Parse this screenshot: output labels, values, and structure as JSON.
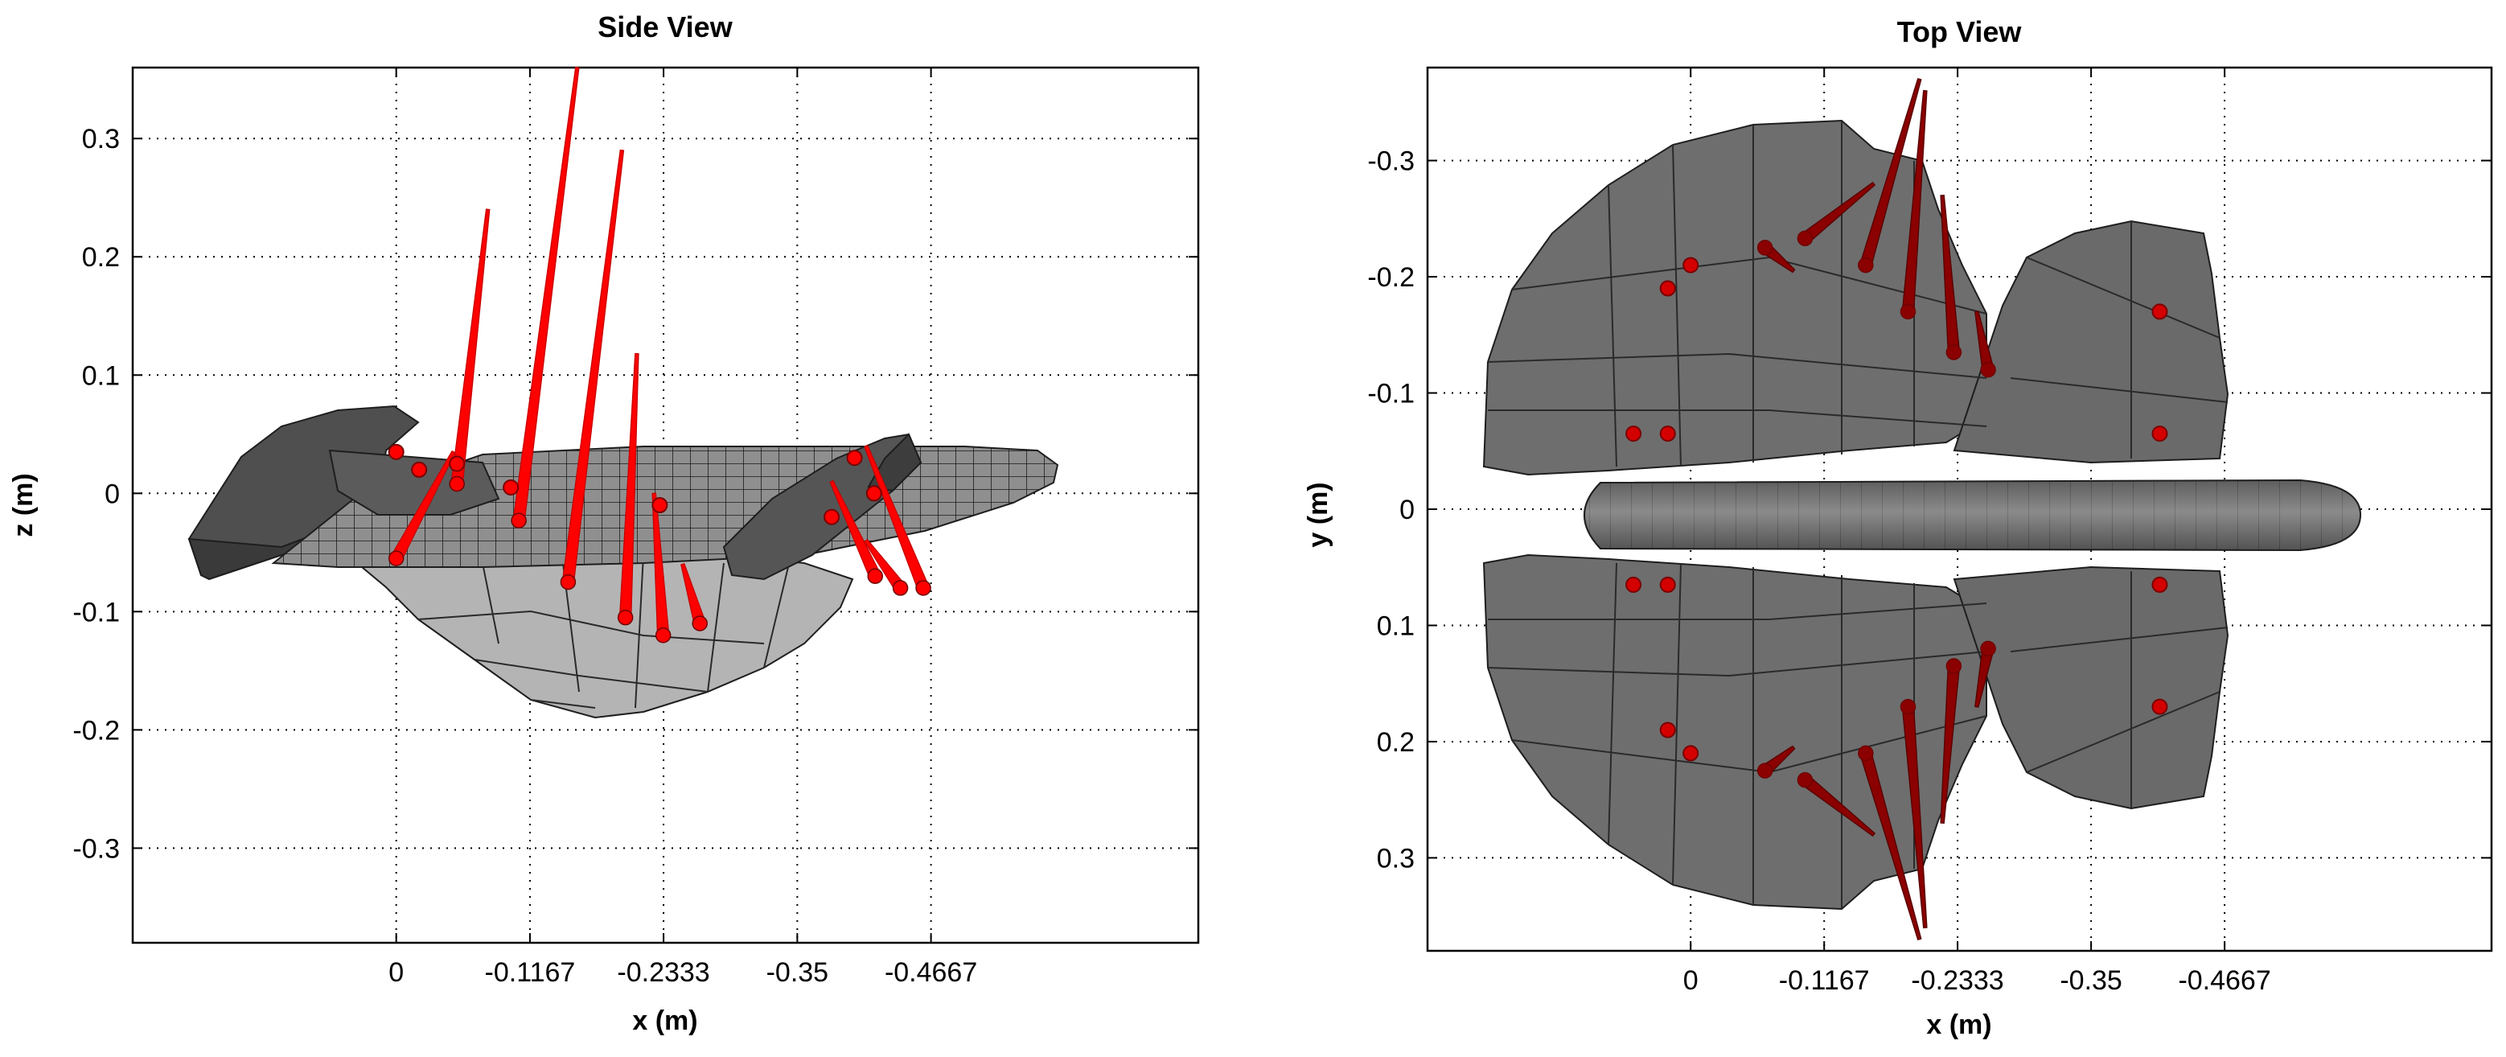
{
  "colors": {
    "background": "#ffffff",
    "body_dark": "#4a4a4a",
    "body_mid": "#6f6f6f",
    "body_light": "#b4b4b4",
    "force_side": "#ff0000",
    "force_top": "#8b0000"
  },
  "chart_data": [
    {
      "type": "other",
      "subtype": "3d-surface-with-force-vectors",
      "title": "Side View",
      "xlabel": "x (m)",
      "ylabel": "z (m)",
      "x_ticks": [
        "0",
        "-0.1167",
        "-0.2333",
        "-0.35",
        "-0.4667"
      ],
      "x_tick_values": [
        0,
        -0.1167,
        -0.2333,
        -0.35,
        -0.4667
      ],
      "y_ticks": [
        "0.3",
        "0.2",
        "0.1",
        "0",
        "-0.1",
        "-0.2",
        "-0.3"
      ],
      "y_tick_values": [
        0.3,
        0.2,
        0.1,
        0,
        -0.1,
        -0.2,
        -0.3
      ],
      "xlim": [
        0.23,
        -0.7
      ],
      "ylim": [
        -0.38,
        0.36
      ],
      "grid": true,
      "force_arrows": [
        {
          "x0": -0.053,
          "z0": 0.008,
          "x1": -0.08,
          "z1": 0.24
        },
        {
          "x0": -0.107,
          "z0": -0.023,
          "x1": -0.158,
          "z1": 0.36
        },
        {
          "x0": -0.15,
          "z0": -0.075,
          "x1": -0.197,
          "z1": 0.29
        },
        {
          "x0": -0.2,
          "z0": -0.105,
          "x1": -0.21,
          "z1": 0.118
        },
        {
          "x0": -0.233,
          "z0": -0.12,
          "x1": -0.225,
          "z1": 0.0
        },
        {
          "x0": -0.265,
          "z0": -0.11,
          "x1": -0.25,
          "z1": -0.06
        },
        {
          "x0": 0.0,
          "z0": -0.055,
          "x1": -0.05,
          "z1": 0.035
        },
        {
          "x0": -0.418,
          "z0": -0.07,
          "x1": -0.38,
          "z1": 0.01
        },
        {
          "x0": -0.46,
          "z0": -0.08,
          "x1": -0.41,
          "z1": 0.04
        },
        {
          "x0": -0.44,
          "z0": -0.08,
          "x1": -0.41,
          "z1": -0.04
        }
      ],
      "force_points": [
        {
          "x": -0.0,
          "z": 0.035
        },
        {
          "x": -0.053,
          "z": 0.025
        },
        {
          "x": -0.38,
          "z": -0.02
        },
        {
          "x": -0.4,
          "z": 0.03
        },
        {
          "x": -0.417,
          "z": 0.0
        },
        {
          "x": -0.23,
          "z": -0.01
        },
        {
          "x": -0.1,
          "z": 0.005
        },
        {
          "x": -0.02,
          "z": 0.02
        }
      ]
    },
    {
      "type": "other",
      "subtype": "3d-surface-with-force-vectors",
      "title": "Top View",
      "xlabel": "x (m)",
      "ylabel": "y (m)",
      "x_ticks": [
        "0",
        "-0.1167",
        "-0.2333",
        "-0.35",
        "-0.4667"
      ],
      "x_tick_values": [
        0,
        -0.1167,
        -0.2333,
        -0.35,
        -0.4667
      ],
      "y_ticks": [
        "-0.3",
        "-0.2",
        "-0.1",
        "0",
        "0.1",
        "0.2",
        "0.3"
      ],
      "y_tick_values": [
        -0.3,
        -0.2,
        -0.1,
        0,
        0.1,
        0.2,
        0.3
      ],
      "xlim": [
        0.23,
        -0.7
      ],
      "ylim": [
        -0.38,
        0.38
      ],
      "grid": true,
      "force_arrows": [
        {
          "x0": -0.065,
          "y0": -0.225,
          "x1": -0.09,
          "y1": -0.205
        },
        {
          "x0": -0.1,
          "y0": -0.233,
          "x1": -0.16,
          "y1": -0.28
        },
        {
          "x0": -0.153,
          "y0": -0.21,
          "x1": -0.2,
          "y1": -0.37
        },
        {
          "x0": -0.19,
          "y0": -0.17,
          "x1": -0.205,
          "y1": -0.36
        },
        {
          "x0": -0.23,
          "y0": -0.135,
          "x1": -0.22,
          "y1": -0.27
        },
        {
          "x0": -0.26,
          "y0": -0.12,
          "x1": -0.25,
          "y1": -0.17
        },
        {
          "x0": -0.065,
          "y0": 0.225,
          "x1": -0.09,
          "y1": 0.205
        },
        {
          "x0": -0.1,
          "y0": 0.233,
          "x1": -0.16,
          "y1": 0.28
        },
        {
          "x0": -0.153,
          "y0": 0.21,
          "x1": -0.2,
          "y1": 0.37
        },
        {
          "x0": -0.19,
          "y0": 0.17,
          "x1": -0.205,
          "y1": 0.36
        },
        {
          "x0": -0.23,
          "y0": 0.135,
          "x1": -0.22,
          "y1": 0.27
        },
        {
          "x0": -0.26,
          "y0": 0.12,
          "x1": -0.25,
          "y1": 0.17
        }
      ],
      "force_points": [
        {
          "x": 0.02,
          "y": -0.19
        },
        {
          "x": -0.0,
          "y": -0.21
        },
        {
          "x": 0.05,
          "y": -0.065
        },
        {
          "x": 0.02,
          "y": -0.065
        },
        {
          "x": -0.41,
          "y": -0.17
        },
        {
          "x": -0.41,
          "y": -0.065
        },
        {
          "x": 0.02,
          "y": 0.19
        },
        {
          "x": -0.0,
          "y": 0.21
        },
        {
          "x": 0.05,
          "y": 0.065
        },
        {
          "x": 0.02,
          "y": 0.065
        },
        {
          "x": -0.41,
          "y": 0.17
        },
        {
          "x": -0.41,
          "y": 0.065
        }
      ]
    }
  ]
}
